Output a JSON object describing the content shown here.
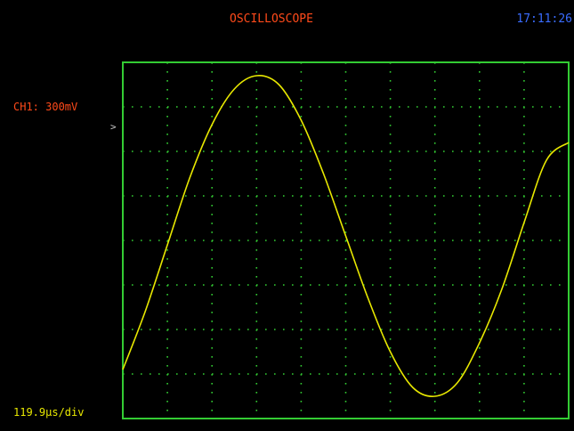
{
  "header": {
    "title": "OSCILLOSCOPE",
    "clock": "17:11:26"
  },
  "channel": {
    "label": "CH1: 300mV",
    "marker": ">"
  },
  "timebase": {
    "label": "119.9μs/div"
  },
  "colors": {
    "title": "#ff4a1a",
    "clock": "#3a6cff",
    "grid_border": "#33cc33",
    "grid_dots": "#33cc33",
    "trace": "#e8e800"
  },
  "chart_data": {
    "type": "line",
    "grid": true,
    "divisions": {
      "x": 10,
      "y": 8
    },
    "series": [
      {
        "x": [
          0,
          0.5,
          1,
          1.5,
          2,
          2.5,
          3,
          3.5,
          4,
          4.5,
          5,
          5.5,
          6,
          6.5,
          7,
          7.5,
          8,
          8.5,
          9,
          9.5,
          10
        ],
        "y": [
          -2.9,
          -1.6,
          -0.1,
          1.4,
          2.6,
          3.4,
          3.7,
          3.5,
          2.7,
          1.5,
          0.1,
          -1.3,
          -2.5,
          -3.3,
          -3.5,
          -3.2,
          -2.3,
          -1.1,
          0.4,
          1.8,
          2.2
        ]
      }
    ]
  }
}
